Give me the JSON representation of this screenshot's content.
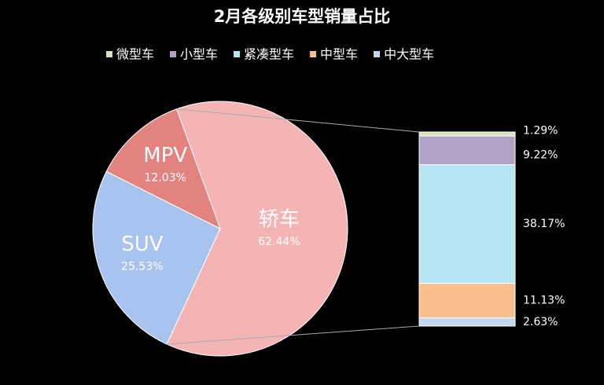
{
  "chart_data": [
    {
      "type": "pie",
      "title": "2月各级别车型销量占比",
      "categories": [
        "轿车",
        "SUV",
        "MPV"
      ],
      "values": [
        62.44,
        25.53,
        12.03
      ],
      "value_labels": [
        "62.44%",
        "25.53%",
        "12.03%"
      ],
      "colors": [
        "#f4b4b4",
        "#a8c4ee",
        "#e2837f"
      ]
    },
    {
      "type": "stacked-bar",
      "series": [
        {
          "name": "微型车",
          "color": "#d6e3bc",
          "values": [
            1.29
          ],
          "value_labels": [
            "1.29%"
          ]
        },
        {
          "name": "小型车",
          "color": "#b2a1c7",
          "values": [
            9.22
          ],
          "value_labels": [
            "9.22%"
          ]
        },
        {
          "name": "紧凑型车",
          "color": "#b6e5f3",
          "values": [
            38.17
          ],
          "value_labels": [
            "38.17%"
          ]
        },
        {
          "name": "中型车",
          "color": "#fabf8f",
          "values": [
            11.13
          ],
          "value_labels": [
            "11.13%"
          ]
        },
        {
          "name": "中大型车",
          "color": "#c5d8f0",
          "values": [
            2.63
          ],
          "value_labels": [
            "2.63%"
          ]
        }
      ]
    }
  ]
}
